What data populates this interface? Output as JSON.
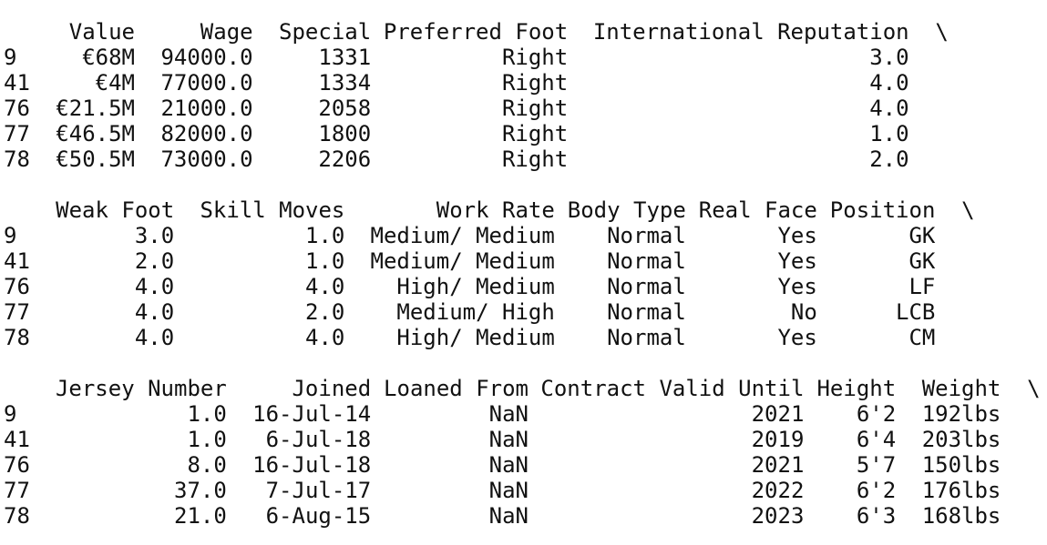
{
  "blocks": [
    {
      "columns": [
        "Value",
        "Wage",
        "Special",
        "Preferred Foot",
        "International Reputation"
      ],
      "continuation": "\\",
      "rows": [
        {
          "index": "9",
          "cells": [
            "€68M",
            "94000.0",
            "1331",
            "Right",
            "3.0"
          ]
        },
        {
          "index": "41",
          "cells": [
            "€4M",
            "77000.0",
            "1334",
            "Right",
            "4.0"
          ]
        },
        {
          "index": "76",
          "cells": [
            "€21.5M",
            "21000.0",
            "2058",
            "Right",
            "4.0"
          ]
        },
        {
          "index": "77",
          "cells": [
            "€46.5M",
            "82000.0",
            "1800",
            "Right",
            "1.0"
          ]
        },
        {
          "index": "78",
          "cells": [
            "€50.5M",
            "73000.0",
            "2206",
            "Right",
            "2.0"
          ]
        }
      ]
    },
    {
      "columns": [
        "Weak Foot",
        "Skill Moves",
        "Work Rate",
        "Body Type",
        "Real Face",
        "Position"
      ],
      "continuation": "\\",
      "rows": [
        {
          "index": "9",
          "cells": [
            "3.0",
            "1.0",
            "Medium/ Medium",
            "Normal",
            "Yes",
            "GK"
          ]
        },
        {
          "index": "41",
          "cells": [
            "2.0",
            "1.0",
            "Medium/ Medium",
            "Normal",
            "Yes",
            "GK"
          ]
        },
        {
          "index": "76",
          "cells": [
            "4.0",
            "4.0",
            "High/ Medium",
            "Normal",
            "Yes",
            "LF"
          ]
        },
        {
          "index": "77",
          "cells": [
            "4.0",
            "2.0",
            "Medium/ High",
            "Normal",
            "No",
            "LCB"
          ]
        },
        {
          "index": "78",
          "cells": [
            "4.0",
            "4.0",
            "High/ Medium",
            "Normal",
            "Yes",
            "CM"
          ]
        }
      ]
    },
    {
      "columns": [
        "Jersey Number",
        "Joined",
        "Loaned From",
        "Contract Valid Until",
        "Height",
        "Weight"
      ],
      "continuation": "\\",
      "rows": [
        {
          "index": "9",
          "cells": [
            "1.0",
            "16-Jul-14",
            "NaN",
            "2021",
            "6'2",
            "192lbs"
          ]
        },
        {
          "index": "41",
          "cells": [
            "1.0",
            "6-Jul-18",
            "NaN",
            "2019",
            "6'4",
            "203lbs"
          ]
        },
        {
          "index": "76",
          "cells": [
            "8.0",
            "16-Jul-18",
            "NaN",
            "2021",
            "5'7",
            "150lbs"
          ]
        },
        {
          "index": "77",
          "cells": [
            "37.0",
            "7-Jul-17",
            "NaN",
            "2022",
            "6'2",
            "176lbs"
          ]
        },
        {
          "index": "78",
          "cells": [
            "21.0",
            "6-Aug-15",
            "NaN",
            "2023",
            "6'3",
            "168lbs"
          ]
        }
      ]
    }
  ]
}
